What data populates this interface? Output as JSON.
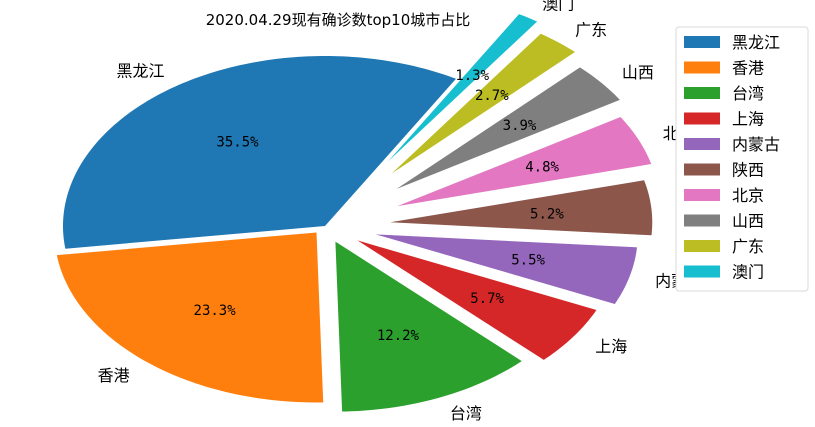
{
  "chart_data": {
    "type": "pie",
    "title": "2020.04.29现有确诊数top10城市占比",
    "categories": [
      "黑龙江",
      "香港",
      "台湾",
      "上海",
      "内蒙古",
      "陕西",
      "北京",
      "山西",
      "广东",
      "澳门"
    ],
    "values": [
      35.5,
      23.3,
      12.2,
      5.7,
      5.5,
      5.2,
      4.8,
      3.9,
      2.7,
      1.3
    ],
    "labels": [
      "35.5%",
      "23.3%",
      "12.2%",
      "5.7%",
      "5.5%",
      "5.2%",
      "4.8%",
      "3.9%",
      "2.7%",
      "1.3%"
    ],
    "colors": [
      "#1f77b4",
      "#ff7f0e",
      "#2ca02c",
      "#d62728",
      "#9467bd",
      "#8c564b",
      "#e377c2",
      "#7f7f7f",
      "#bcbd22",
      "#17becf"
    ],
    "start_angle_deg": 60,
    "direction": "counterclockwise",
    "explode": [
      0,
      0.05,
      0.1,
      0.15,
      0.2,
      0.25,
      0.3,
      0.35,
      0.4,
      0.45
    ],
    "legend_position": "top-right"
  }
}
